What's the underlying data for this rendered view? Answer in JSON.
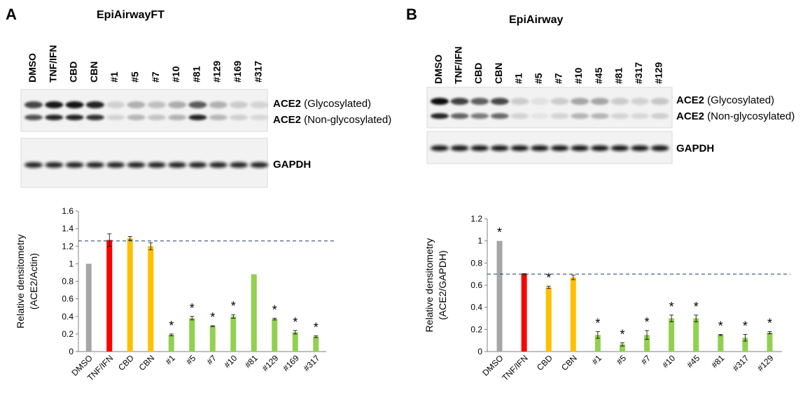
{
  "panels": [
    {
      "letter": "A",
      "title": "EpiAirwayFT",
      "lanes": [
        "DMSO",
        "TNF/IFN",
        "CBD",
        "CBN",
        "#1",
        "#5",
        "#7",
        "#10",
        "#81",
        "#129",
        "#169",
        "#317"
      ],
      "blot_top": {
        "bands": [
          {
            "name": "ACE2",
            "detail": " (Glycosylated)"
          },
          {
            "name": "ACE2",
            "detail": " (Non-glycosylated)"
          }
        ]
      },
      "blot_bottom": {
        "label": "GAPDH"
      }
    },
    {
      "letter": "B",
      "title": "EpiAirway",
      "lanes": [
        "DMSO",
        "TNF/IFN",
        "CBD",
        "CBN",
        "#1",
        "#5",
        "#7",
        "#10",
        "#45",
        "#81",
        "#317",
        "#129"
      ],
      "blot_top": {
        "bands": [
          {
            "name": "ACE2",
            "detail": " (Glycosylated)"
          },
          {
            "name": "ACE2",
            "detail": " (Non-glycosylated)"
          }
        ]
      },
      "blot_bottom": {
        "label": "GAPDH"
      }
    }
  ],
  "colors": {
    "gray": "#a6a6a6",
    "red": "#ff0000",
    "yellow": "#ffc000",
    "green": "#92d050",
    "dash": "#1f3864",
    "axis": "#808080"
  },
  "chart_data": [
    {
      "type": "bar",
      "ylabel_lines": [
        "Relative densitometry",
        "(ACE2/Actin)"
      ],
      "ylim": [
        0,
        1.6
      ],
      "yticks": [
        "0",
        "0.2",
        "0.4",
        "0.6",
        "0.8",
        "1",
        "1.2",
        "1.4",
        "1.6"
      ],
      "categories": [
        "DMSO",
        "TNF/IFN",
        "CBD",
        "CBN",
        "#1",
        "#5",
        "#7",
        "#10",
        "#81",
        "#129",
        "#169",
        "#317"
      ],
      "values": [
        1.0,
        1.27,
        1.29,
        1.2,
        0.19,
        0.38,
        0.29,
        0.4,
        0.88,
        0.37,
        0.22,
        0.17
      ],
      "errors": [
        0.0,
        0.07,
        0.02,
        0.04,
        0.01,
        0.02,
        0.005,
        0.02,
        0.0,
        0.01,
        0.02,
        0.01
      ],
      "bar_colors": [
        "gray",
        "red",
        "yellow",
        "yellow",
        "green",
        "green",
        "green",
        "green",
        "green",
        "green",
        "green",
        "green"
      ],
      "significant": [
        false,
        false,
        false,
        false,
        true,
        true,
        true,
        true,
        false,
        true,
        true,
        true
      ],
      "star": "*",
      "reference_line": 1.26,
      "grid": false
    },
    {
      "type": "bar",
      "ylabel_lines": [
        "Relative densitometry",
        "(ACE2/GAPDH)"
      ],
      "ylim": [
        0,
        1.2
      ],
      "yticks": [
        "0",
        "0.2",
        "0.4",
        "0.6",
        "0.8",
        "1",
        "1.2"
      ],
      "categories": [
        "DMSO",
        "TNF/IFN",
        "CBD",
        "CBN",
        "#1",
        "#5",
        "#7",
        "#10",
        "#45",
        "#81",
        "#317",
        "#129"
      ],
      "values": [
        1.0,
        0.7,
        0.58,
        0.67,
        0.15,
        0.065,
        0.15,
        0.3,
        0.3,
        0.15,
        0.125,
        0.17
      ],
      "errors": [
        0.0,
        0.005,
        0.01,
        0.02,
        0.03,
        0.015,
        0.04,
        0.03,
        0.03,
        0.005,
        0.03,
        0.01
      ],
      "bar_colors": [
        "gray",
        "red",
        "yellow",
        "yellow",
        "green",
        "green",
        "green",
        "green",
        "green",
        "green",
        "green",
        "green"
      ],
      "significant": [
        true,
        false,
        true,
        false,
        true,
        true,
        true,
        true,
        true,
        true,
        true,
        true
      ],
      "star": "*",
      "reference_line": 0.7,
      "grid": false
    }
  ]
}
